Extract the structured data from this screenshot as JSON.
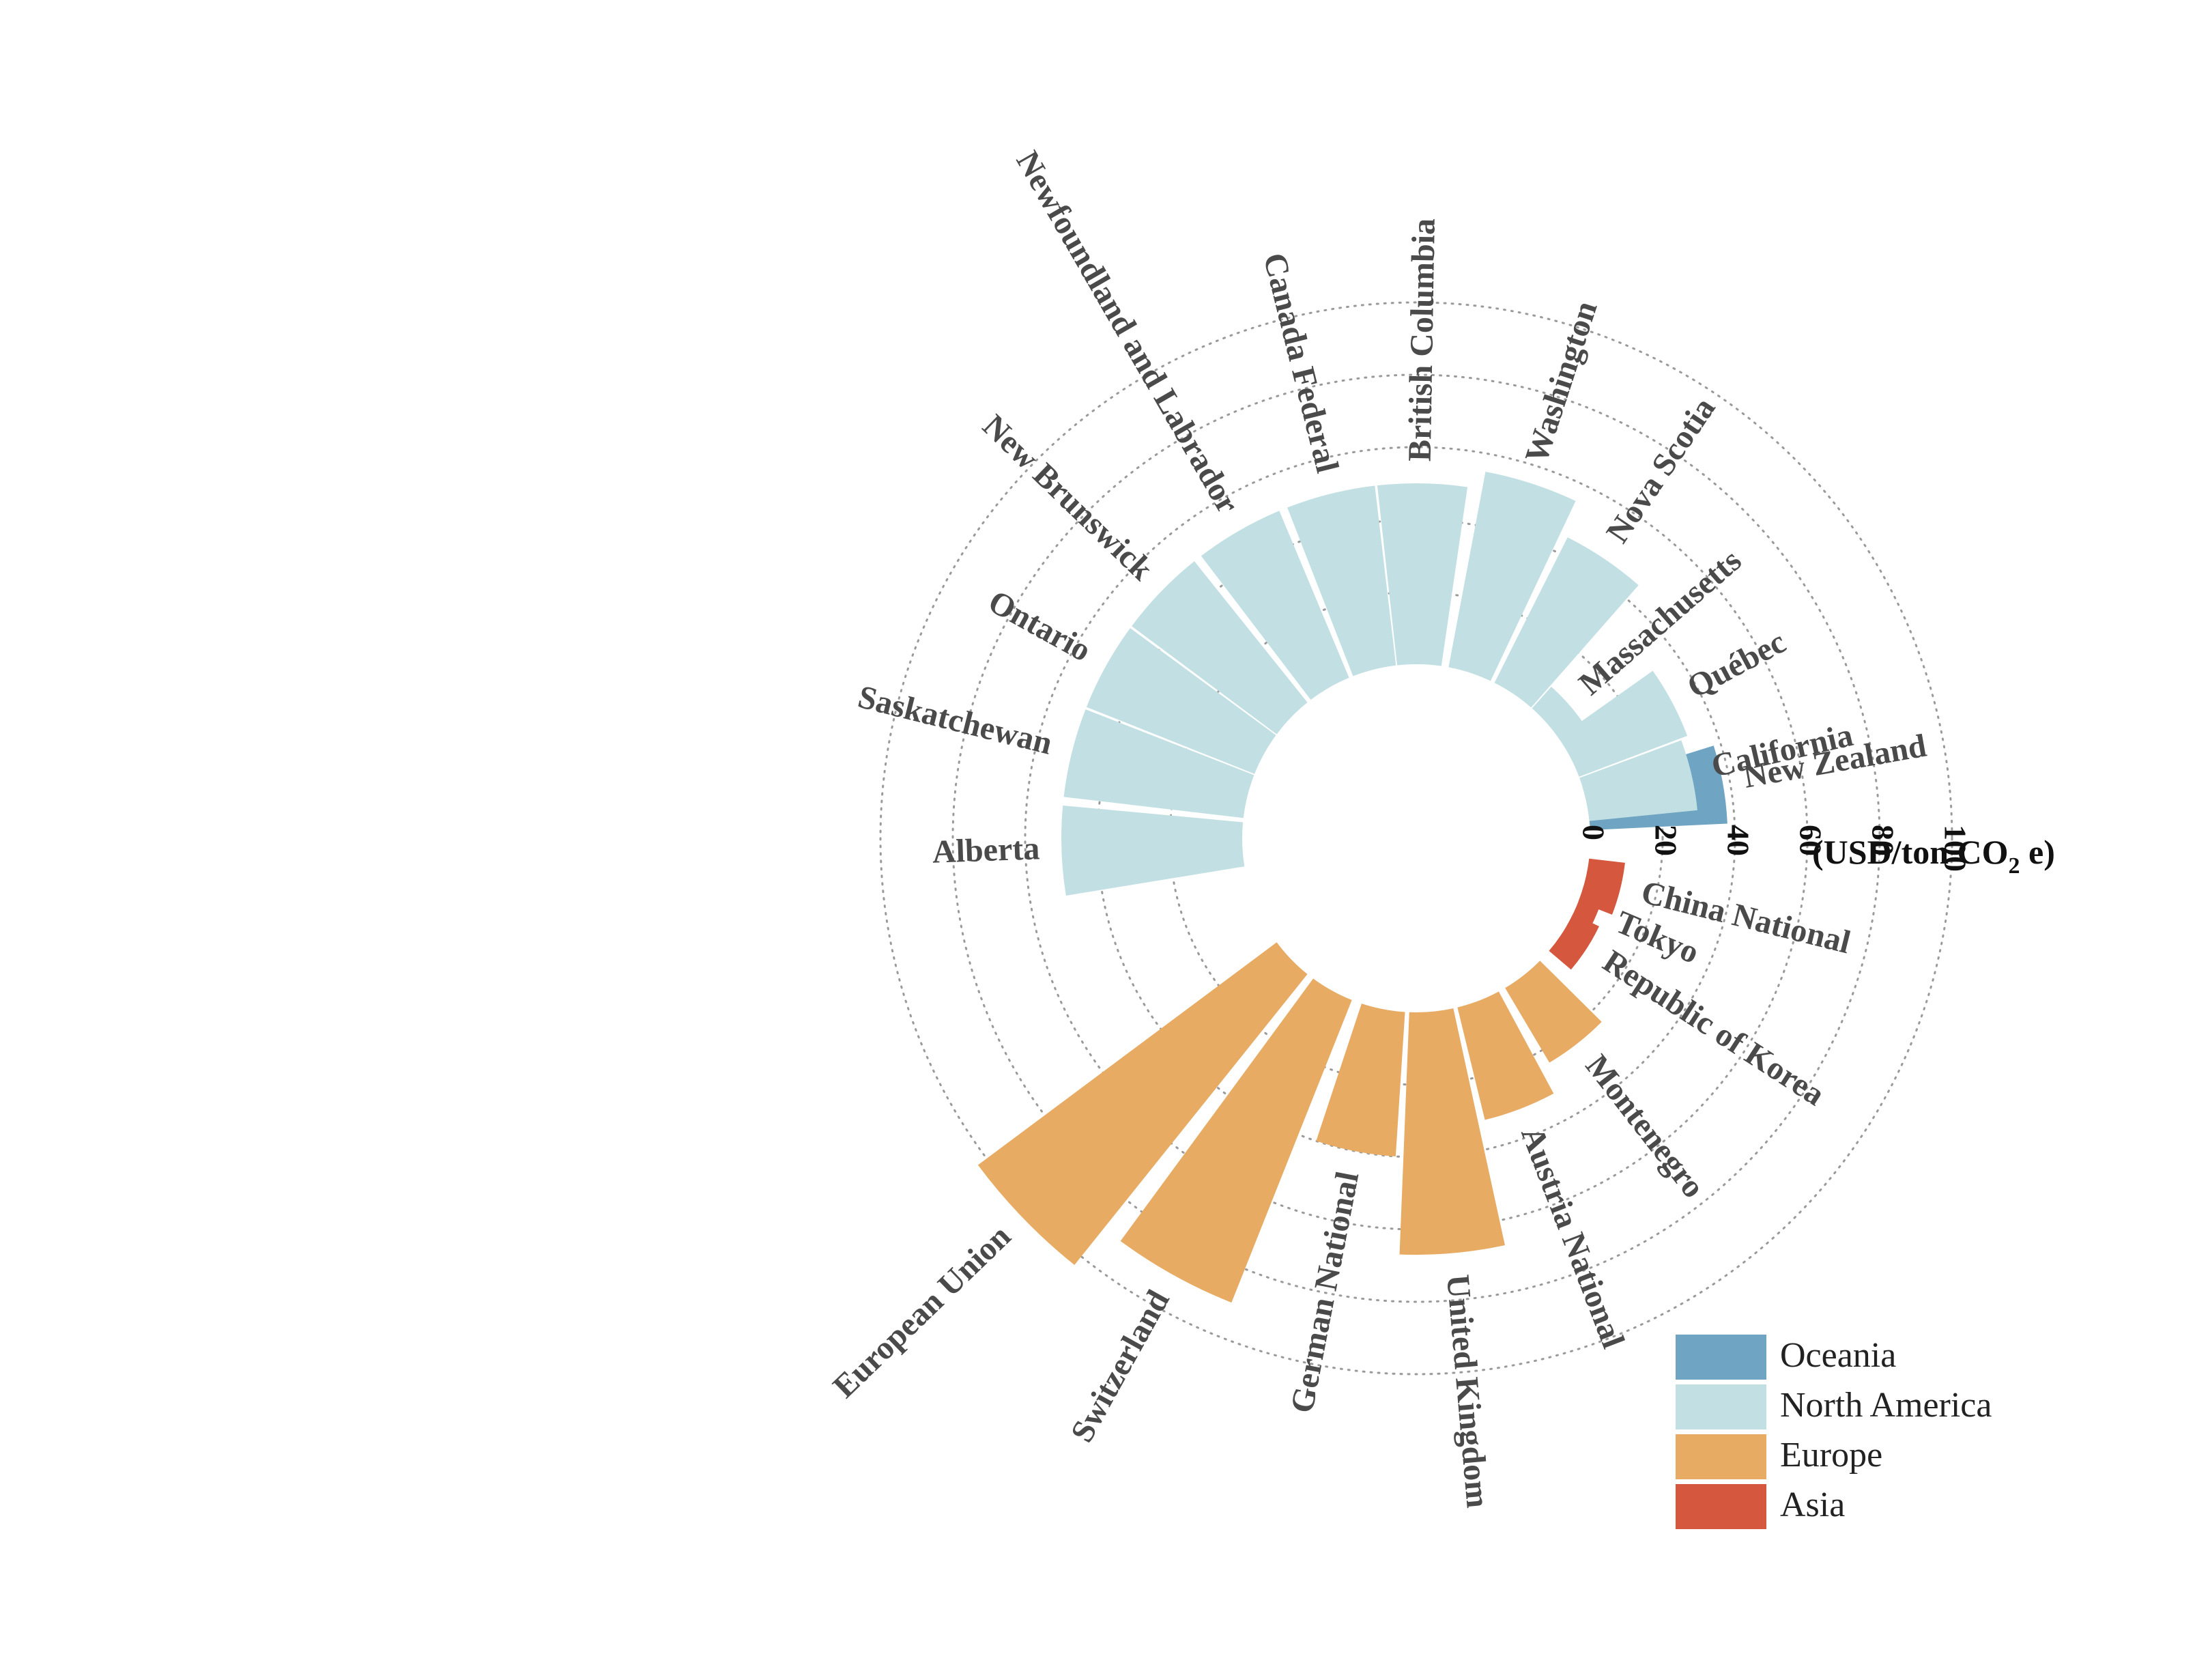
{
  "chart_data": {
    "type": "circular-bar",
    "title": "",
    "unit_label": "(USD/ton CO",
    "unit_subscript": "2",
    "unit_suffix": " e)",
    "radial_ticks": [
      "0",
      "20",
      "40",
      "60",
      "80",
      "100"
    ],
    "radial_range": [
      0,
      100
    ],
    "grid": true,
    "legend_position": "bottom-right",
    "regions": [
      {
        "name": "Oceania",
        "color": "#6fa4c2"
      },
      {
        "name": "North America",
        "color": "#c2e0e3"
      },
      {
        "name": "Europe",
        "color": "#e8ab64"
      },
      {
        "name": "Asia",
        "color": "#d4573e"
      }
    ],
    "bars": [
      {
        "label": "New Zealand",
        "value": 38,
        "region": "Oceania"
      },
      {
        "label": "China National",
        "value": 10,
        "region": "Asia"
      },
      {
        "label": "Tokyo",
        "value": 6,
        "region": "Asia"
      },
      {
        "label": "Republic of Korea",
        "value": 8,
        "region": "Asia"
      },
      {
        "label": "Montenegro",
        "value": 24,
        "region": "Europe"
      },
      {
        "label": "Austria National",
        "value": 32,
        "region": "Europe"
      },
      {
        "label": "United Kingdom",
        "value": 67,
        "region": "Europe"
      },
      {
        "label": "German National",
        "value": 40,
        "region": "Europe"
      },
      {
        "label": "Switzerland",
        "value": 90,
        "region": "Europe"
      },
      {
        "label": "European Union",
        "value": 103,
        "region": "Europe"
      },
      {
        "label": "Alberta",
        "value": 50,
        "region": "North America"
      },
      {
        "label": "Saskatchewan",
        "value": 50,
        "region": "North America"
      },
      {
        "label": "Ontario",
        "value": 50,
        "region": "North America"
      },
      {
        "label": "New Brunswick",
        "value": 50,
        "region": "North America"
      },
      {
        "label": "Newfoundland and Labrador",
        "value": 50,
        "region": "North America"
      },
      {
        "label": "Canada Federal",
        "value": 50,
        "region": "North America"
      },
      {
        "label": "British Columbia",
        "value": 50,
        "region": "North America"
      },
      {
        "label": "Washington",
        "value": 55,
        "region": "North America"
      },
      {
        "label": "Nova Scotia",
        "value": 45,
        "region": "North America"
      },
      {
        "label": "Massachusetts",
        "value": 8,
        "region": "North America"
      },
      {
        "label": "Québec",
        "value": 32,
        "region": "North America"
      },
      {
        "label": "California",
        "value": 30,
        "region": "North America"
      }
    ]
  }
}
